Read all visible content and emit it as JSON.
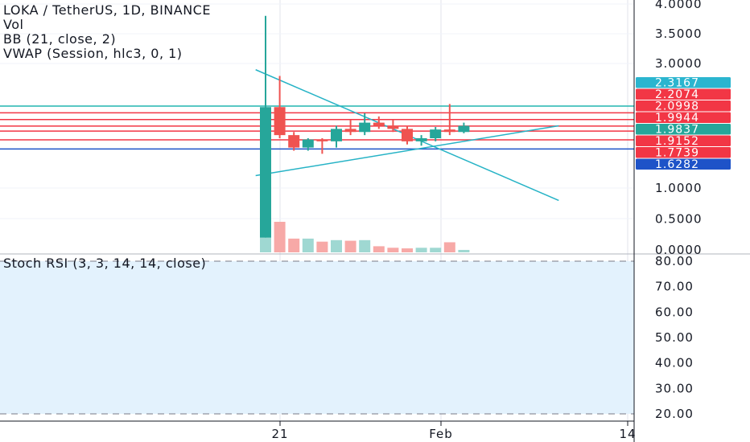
{
  "legend": {
    "symbol": "LOKA / TetherUS, 1D, BINANCE",
    "vol": "Vol",
    "bb": "BB (21, close, 2)",
    "vwap": "VWAP (Session, hlc3, 0, 1)"
  },
  "rsi_label": "Stoch RSI (3, 3, 14, 14, close)",
  "colors": {
    "up": "#26a69a",
    "down": "#ef5350",
    "up_vol": "#9fd8d2",
    "down_vol": "#f7a9a7",
    "trendline": "#26b3c6",
    "red_line": "#f23645",
    "blue_line": "#1e53c8",
    "teal_line": "#22b6b0",
    "rsi_fill": "#e3f2fd"
  },
  "chart_data": [
    {
      "type": "candlestick",
      "title": "LOKA / TetherUS, 1D, BINANCE",
      "x_ticks": [
        "21",
        "Feb",
        "14"
      ],
      "y_ticks": [
        "4.0000",
        "3.5000",
        "3.0000",
        "1.0000",
        "0.5000",
        "0.0000"
      ],
      "ylim": [
        0,
        4.0
      ],
      "candles": [
        {
          "o": 0.2,
          "h": 3.8,
          "l": 0.2,
          "c": 2.3
        },
        {
          "o": 2.3,
          "h": 2.8,
          "l": 1.8,
          "c": 1.85
        },
        {
          "o": 1.85,
          "h": 1.9,
          "l": 1.6,
          "c": 1.65
        },
        {
          "o": 1.65,
          "h": 1.8,
          "l": 1.6,
          "c": 1.78
        },
        {
          "o": 1.78,
          "h": 1.8,
          "l": 1.55,
          "c": 1.75
        },
        {
          "o": 1.75,
          "h": 2.0,
          "l": 1.65,
          "c": 1.95
        },
        {
          "o": 1.95,
          "h": 2.1,
          "l": 1.85,
          "c": 1.9
        },
        {
          "o": 1.9,
          "h": 2.2,
          "l": 1.85,
          "c": 2.05
        },
        {
          "o": 2.05,
          "h": 2.15,
          "l": 1.95,
          "c": 2.0
        },
        {
          "o": 2.0,
          "h": 2.1,
          "l": 1.9,
          "c": 1.95
        },
        {
          "o": 1.95,
          "h": 2.0,
          "l": 1.7,
          "c": 1.75
        },
        {
          "o": 1.75,
          "h": 1.85,
          "l": 1.68,
          "c": 1.8
        },
        {
          "o": 1.8,
          "h": 1.98,
          "l": 1.75,
          "c": 1.94
        },
        {
          "o": 1.94,
          "h": 2.35,
          "l": 1.85,
          "c": 1.9
        },
        {
          "o": 1.9,
          "h": 2.05,
          "l": 1.88,
          "c": 2.0
        }
      ],
      "volume": [
        {
          "v": 1.0,
          "dir": "up"
        },
        {
          "v": 1.0,
          "dir": "down"
        },
        {
          "v": 0.45,
          "dir": "down"
        },
        {
          "v": 0.45,
          "dir": "up"
        },
        {
          "v": 0.35,
          "dir": "down"
        },
        {
          "v": 0.4,
          "dir": "up"
        },
        {
          "v": 0.38,
          "dir": "down"
        },
        {
          "v": 0.4,
          "dir": "up"
        },
        {
          "v": 0.2,
          "dir": "down"
        },
        {
          "v": 0.15,
          "dir": "down"
        },
        {
          "v": 0.13,
          "dir": "down"
        },
        {
          "v": 0.15,
          "dir": "up"
        },
        {
          "v": 0.15,
          "dir": "up"
        },
        {
          "v": 0.33,
          "dir": "down"
        },
        {
          "v": 0.08,
          "dir": "up"
        }
      ],
      "horizontal_levels": [
        {
          "value": 2.3167,
          "label": "2.3167",
          "color": "teal"
        },
        {
          "value": 2.2074,
          "label": "2.2074",
          "color": "red"
        },
        {
          "value": 2.0998,
          "label": "2.0998",
          "color": "red"
        },
        {
          "value": 1.9944,
          "label": "1.9944",
          "color": "red"
        },
        {
          "value": 1.9837,
          "label": "1.9837",
          "color": "up"
        },
        {
          "value": 1.9152,
          "label": "1.9152",
          "color": "red"
        },
        {
          "value": 1.7739,
          "label": "1.7739",
          "color": "red"
        },
        {
          "value": 1.6282,
          "label": "1.6282",
          "color": "blue"
        }
      ],
      "trendlines": [
        {
          "x1": -0.7,
          "y1": 2.9,
          "x2": 20.7,
          "y2": 0.8
        },
        {
          "x1": -0.7,
          "y1": 1.2,
          "x2": 20.7,
          "y2": 2.0
        }
      ]
    },
    {
      "type": "line",
      "title": "Stoch RSI (3, 3, 14, 14, close)",
      "y_ticks": [
        "80.00",
        "70.00",
        "60.00",
        "50.00",
        "40.00",
        "30.00",
        "20.00"
      ],
      "ylim": [
        20,
        80
      ],
      "bands": [
        20,
        80
      ]
    }
  ]
}
